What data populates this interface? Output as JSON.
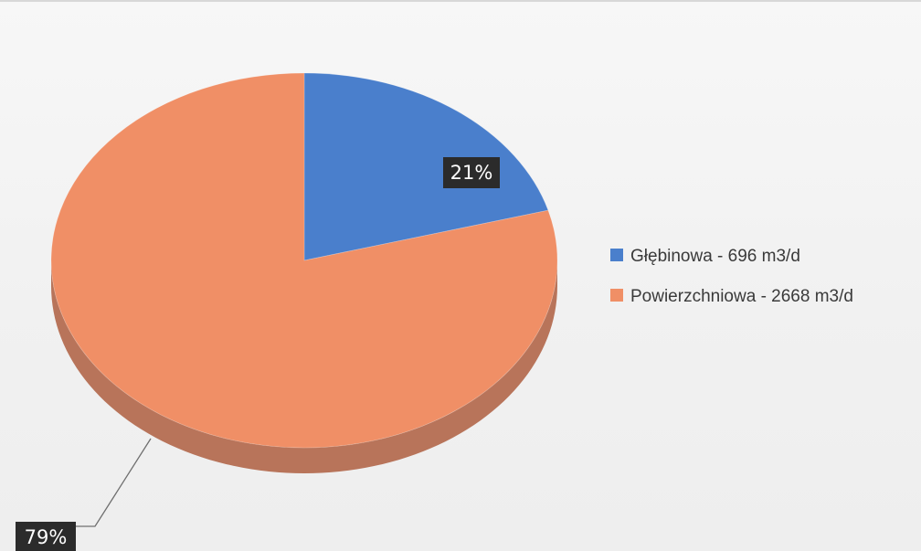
{
  "chart_data": {
    "type": "pie",
    "title": "",
    "categories": [
      "Głębinowa - 696 m3/d",
      "Powierzchniowa - 2668 m3/d"
    ],
    "values": [
      696,
      2668
    ],
    "percent_labels": [
      "21%",
      "79%"
    ],
    "colors": [
      "#4a7fcc",
      "#f08f66"
    ],
    "side_colors": [
      "#35609e",
      "#b8745a"
    ],
    "legend": {
      "position": "right",
      "entries": [
        "Głębinowa - 696 m3/d",
        "Powierzchniowa - 2668 m3/d"
      ]
    },
    "style": "3d"
  }
}
